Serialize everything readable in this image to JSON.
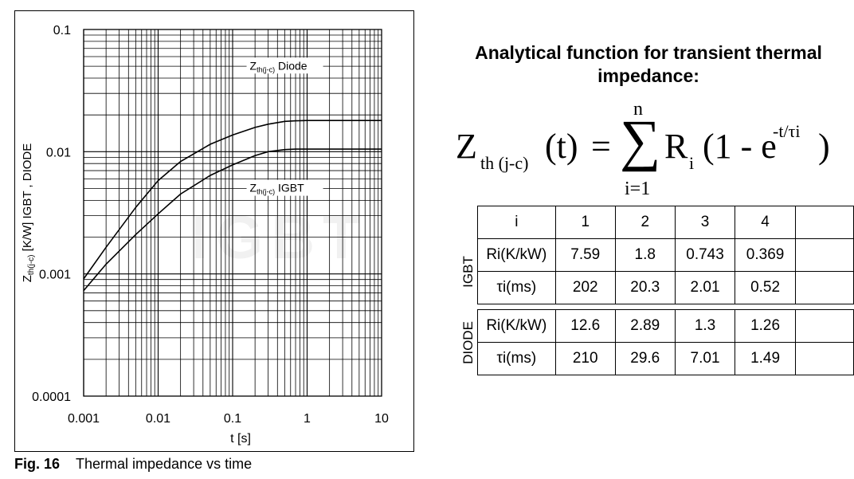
{
  "figure": {
    "number": "Fig. 16",
    "caption": "Thermal impedance vs time"
  },
  "chart_data": {
    "type": "line",
    "x_scale": "log",
    "y_scale": "log",
    "xlim": [
      0.001,
      10
    ],
    "ylim": [
      0.0001,
      0.1
    ],
    "xlabel": "t  [s]",
    "ylabel": "Zth(j-c)  [K/W]   IGBT , DIODE",
    "ylabel_main": "Z",
    "ylabel_sub": "th(j-c)",
    "ylabel_rest": "  [K/W]   IGBT , DIODE",
    "x_ticks": [
      0.001,
      0.01,
      0.1,
      1,
      10
    ],
    "x_tick_labels": [
      "0.001",
      "0.01",
      "0.1",
      "1",
      "10"
    ],
    "y_ticks": [
      0.0001,
      0.001,
      0.01,
      0.1
    ],
    "y_tick_labels": [
      "0.0001",
      "0.001",
      "0.01",
      "0.1"
    ],
    "grid": true,
    "series": [
      {
        "name": "Zth(j-c) Diode",
        "label_main": "Z",
        "label_sub": "th(j-c)",
        "label_rest": " Diode",
        "x": [
          0.001,
          0.002,
          0.005,
          0.01,
          0.02,
          0.05,
          0.1,
          0.2,
          0.3,
          0.5,
          0.7,
          1,
          2,
          5,
          10
        ],
        "y": [
          0.00091,
          0.00165,
          0.0035,
          0.0058,
          0.0083,
          0.0115,
          0.0137,
          0.0158,
          0.0168,
          0.0177,
          0.0179,
          0.018,
          0.018,
          0.018,
          0.018
        ]
      },
      {
        "name": "Zth(j-c) IGBT",
        "label_main": "Z",
        "label_sub": "th(j-c)",
        "label_rest": " IGBT",
        "x": [
          0.001,
          0.002,
          0.005,
          0.01,
          0.02,
          0.05,
          0.1,
          0.2,
          0.3,
          0.5,
          0.7,
          1,
          2,
          5,
          10
        ],
        "y": [
          0.00073,
          0.0012,
          0.0021,
          0.0031,
          0.0045,
          0.0064,
          0.0078,
          0.0093,
          0.01,
          0.0104,
          0.0105,
          0.0105,
          0.0105,
          0.0105,
          0.0105
        ]
      }
    ]
  },
  "right_panel": {
    "title": "Analytical function for transient thermal impedance:",
    "formula": {
      "lhs_main": "Z",
      "lhs_sub": "th (j-c)",
      "lhs_arg": "(t)",
      "equals": "=",
      "sum_top": "n",
      "sum_symbol": "∑",
      "sum_bottom": "i=1",
      "r_main": "R",
      "r_sub": "i",
      "paren_open": "(1 - e",
      "exponent": "-t/τi",
      "paren_close": ")"
    },
    "table": {
      "header_label": "i",
      "columns": [
        "1",
        "2",
        "3",
        "4",
        ""
      ],
      "groups": [
        {
          "name": "IGBT",
          "rows": [
            {
              "label": "Ri(K/kW)",
              "values": [
                "7.59",
                "1.8",
                "0.743",
                "0.369",
                ""
              ]
            },
            {
              "label": "τi(ms)",
              "values": [
                "202",
                "20.3",
                "2.01",
                "0.52",
                ""
              ]
            }
          ]
        },
        {
          "name": "DIODE",
          "rows": [
            {
              "label": "Ri(K/kW)",
              "values": [
                "12.6",
                "2.89",
                "1.3",
                "1.26",
                ""
              ]
            },
            {
              "label": "τi(ms)",
              "values": [
                "210",
                "29.6",
                "7.01",
                "1.49",
                ""
              ]
            }
          ]
        }
      ]
    }
  },
  "watermark": "IGBT"
}
